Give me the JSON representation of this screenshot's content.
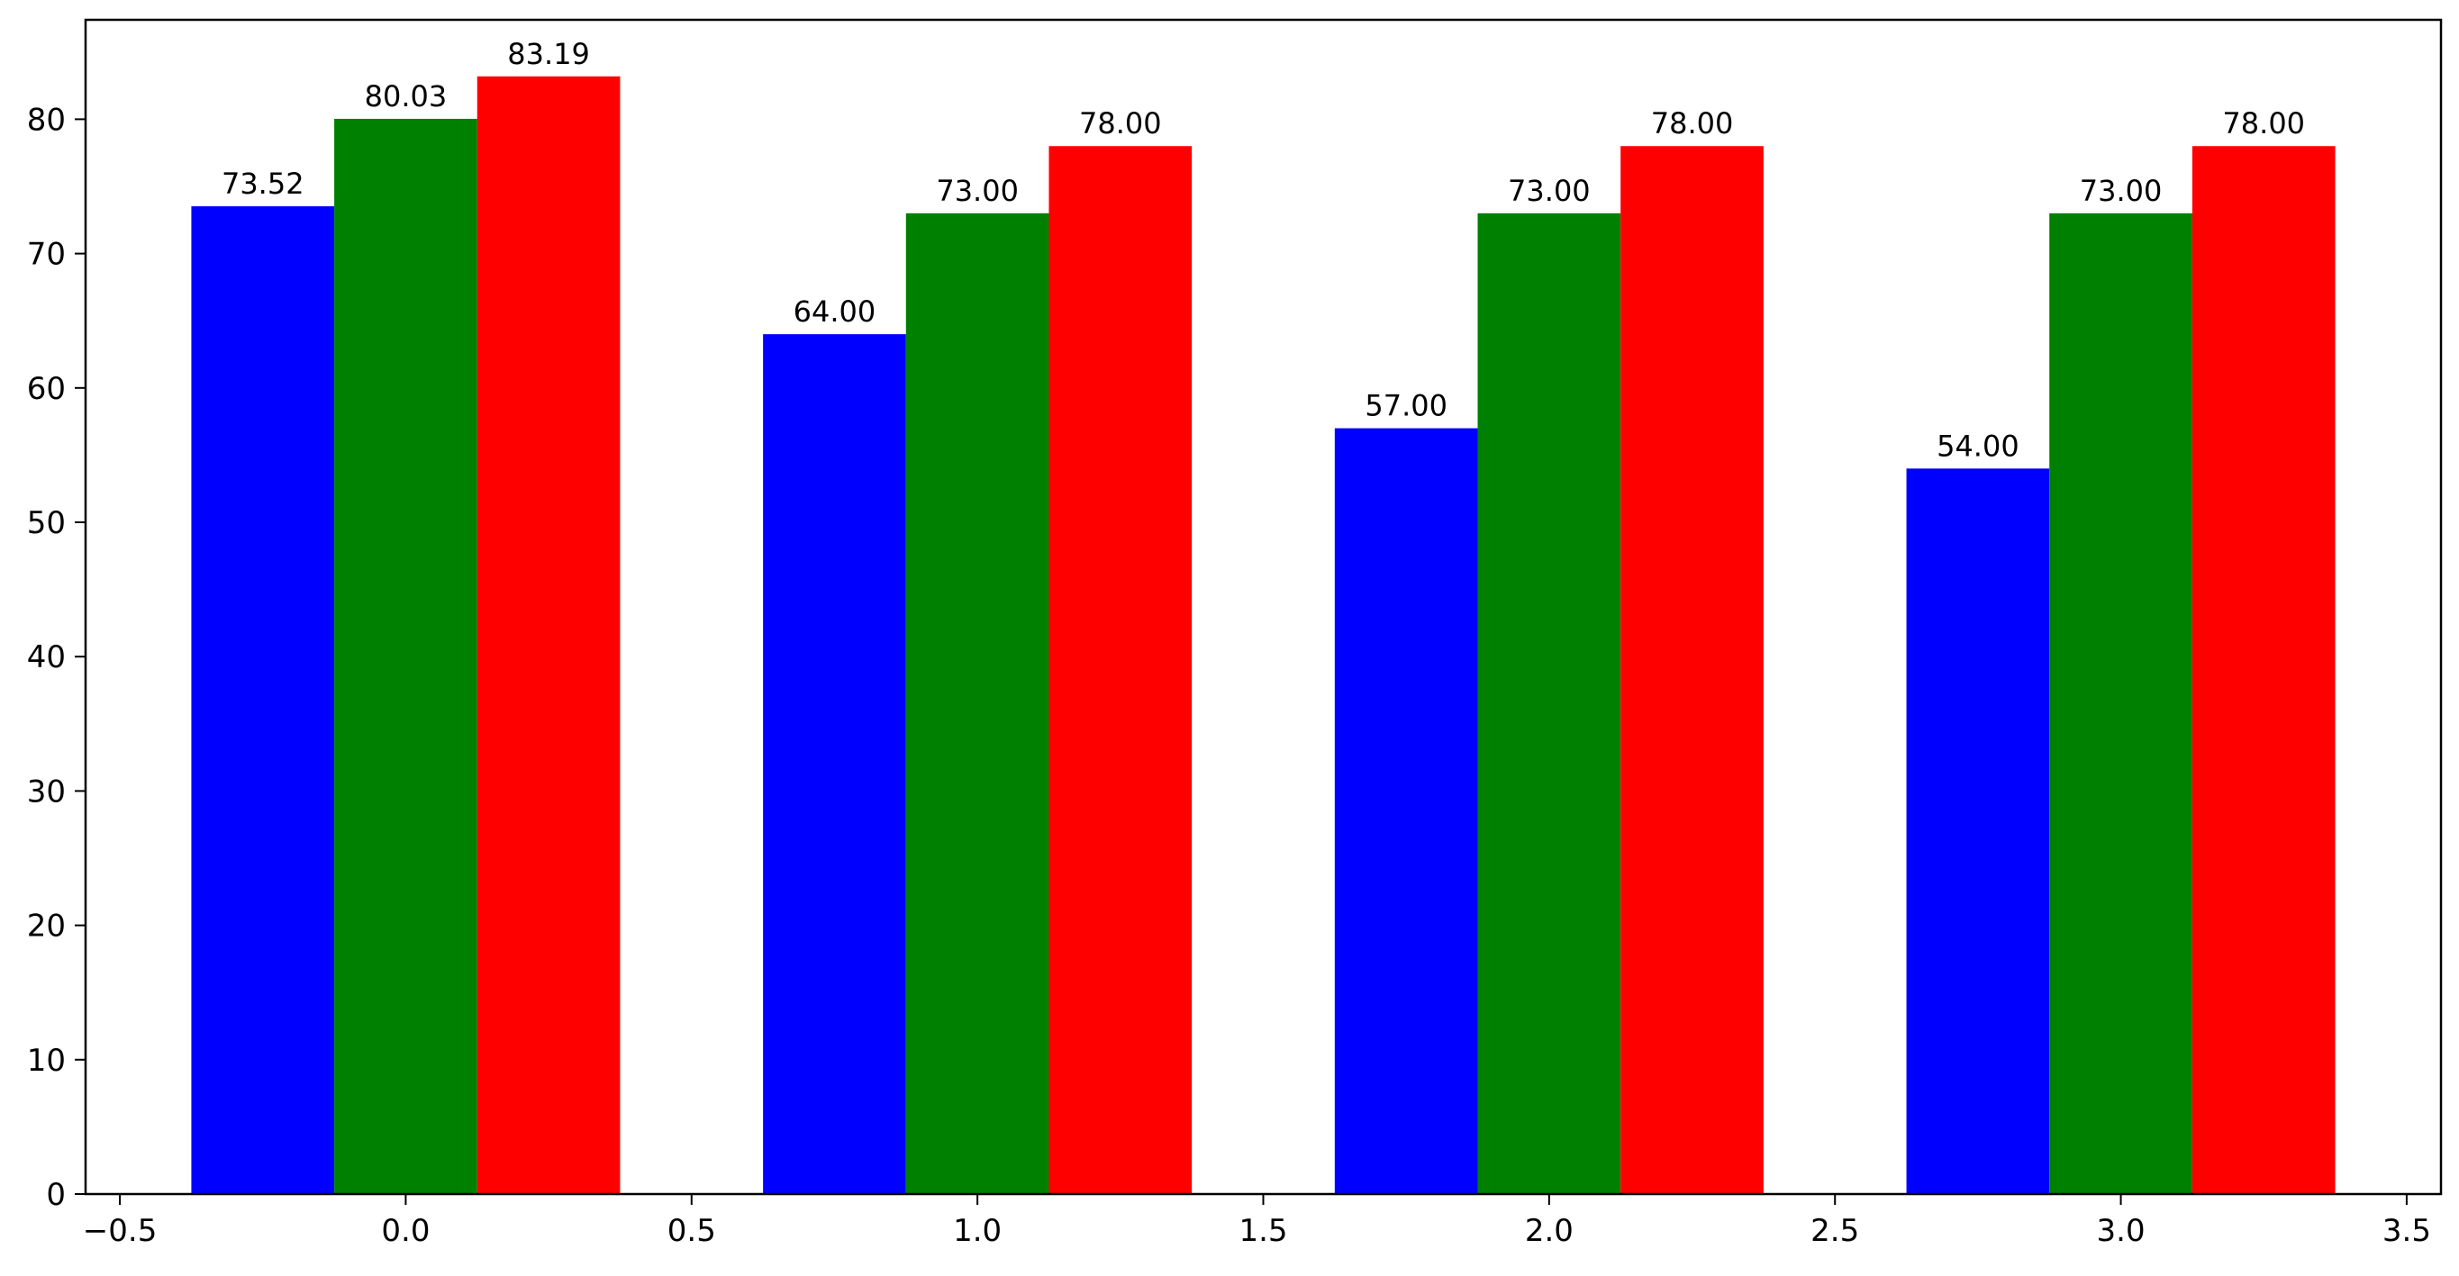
{
  "chart_data": {
    "type": "bar",
    "title": "",
    "xlabel": "",
    "ylabel": "",
    "xlim": [
      -0.56,
      3.56
    ],
    "ylim": [
      0,
      87.4
    ],
    "xticks": [
      -0.5,
      0.0,
      0.5,
      1.0,
      1.5,
      2.0,
      2.5,
      3.0,
      3.5
    ],
    "xtick_labels": [
      "−0.5",
      "0.0",
      "0.5",
      "1.0",
      "1.5",
      "2.0",
      "2.5",
      "3.0",
      "3.5"
    ],
    "yticks": [
      0,
      10,
      20,
      30,
      40,
      50,
      60,
      70,
      80
    ],
    "ytick_labels": [
      "0",
      "10",
      "20",
      "30",
      "40",
      "50",
      "60",
      "70",
      "80"
    ],
    "grid": false,
    "bar_width": 0.25,
    "x": [
      0,
      1,
      2,
      3
    ],
    "series": [
      {
        "color": "#0000ff",
        "offset": -0.25,
        "values": [
          73.52,
          64.0,
          57.0,
          54.0
        ],
        "labels": [
          "73.52",
          "64.00",
          "57.00",
          "54.00"
        ]
      },
      {
        "color": "#008000",
        "offset": 0.0,
        "values": [
          80.03,
          73.0,
          73.0,
          73.0
        ],
        "labels": [
          "80.03",
          "73.00",
          "73.00",
          "73.00"
        ]
      },
      {
        "color": "#ff0000",
        "offset": 0.25,
        "values": [
          83.19,
          78.0,
          78.0,
          78.0
        ],
        "labels": [
          "83.19",
          "78.00",
          "78.00",
          "78.00"
        ]
      }
    ]
  }
}
